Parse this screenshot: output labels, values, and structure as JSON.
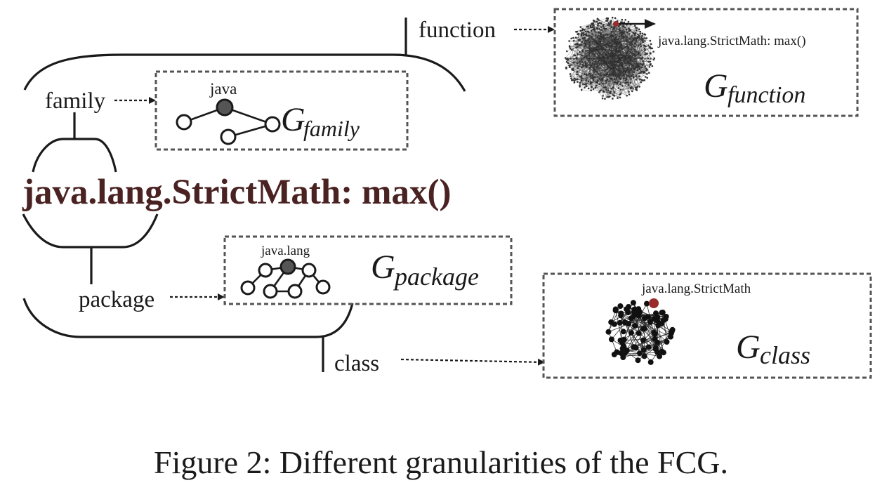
{
  "diagram": {
    "center_label": "java.lang.StrictMath: max()",
    "center_label_color": "#4a2222",
    "caption": "Figure 2: Different granularities of the FCG.",
    "granularities": {
      "family": {
        "level_label": "family",
        "graph_symbol": "G",
        "graph_subscript": "family",
        "node_label": "java"
      },
      "package": {
        "level_label": "package",
        "graph_symbol": "G",
        "graph_subscript": "package",
        "node_label": "java.lang"
      },
      "class": {
        "level_label": "class",
        "graph_symbol": "G",
        "graph_subscript": "class",
        "node_label": "java.lang.StrictMath"
      },
      "function": {
        "level_label": "function",
        "graph_symbol": "G",
        "graph_subscript": "function",
        "node_label": "java.lang.StrictMath: max()"
      }
    },
    "highlight_color": "#9b2a2a"
  }
}
